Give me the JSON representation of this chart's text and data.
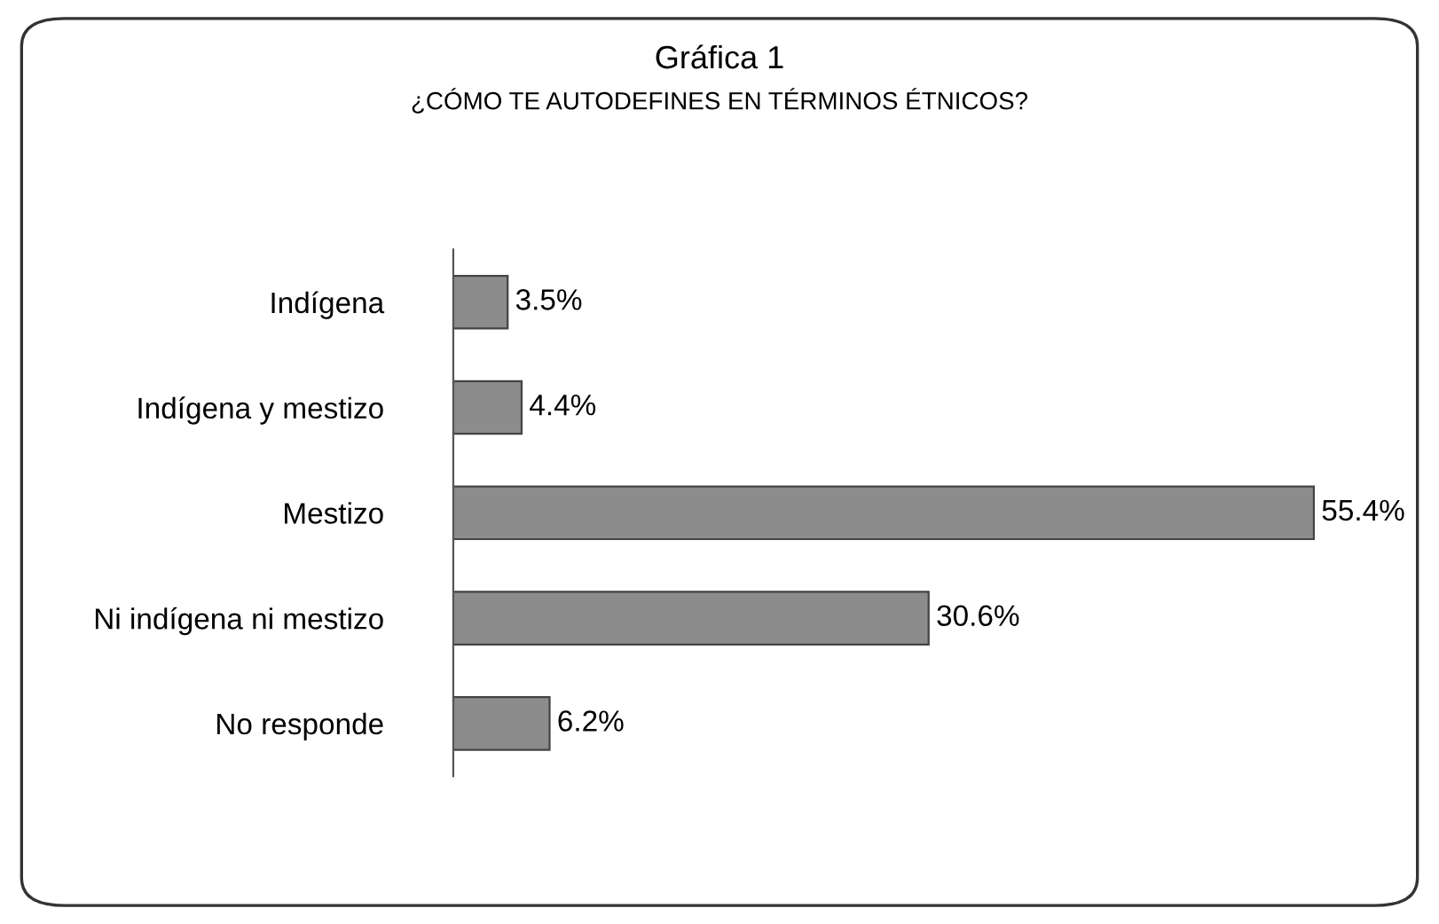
{
  "chart_data": {
    "type": "bar",
    "orientation": "horizontal",
    "title": "Gráfica 1",
    "subtitle": "¿CÓMO TE AUTODEFINES EN TÉRMINOS ÉTNICOS?",
    "categories": [
      "Indígena",
      "Indígena y mestizo",
      "Mestizo",
      "Ni indígena ni mestizo",
      "No responde"
    ],
    "values": [
      3.5,
      4.4,
      55.4,
      30.6,
      6.2
    ],
    "value_labels": [
      "3.5%",
      "4.4%",
      "55.4%",
      "30.6%",
      "6.2%"
    ],
    "color": "#8c8c8c",
    "legend": false,
    "grid": false
  }
}
